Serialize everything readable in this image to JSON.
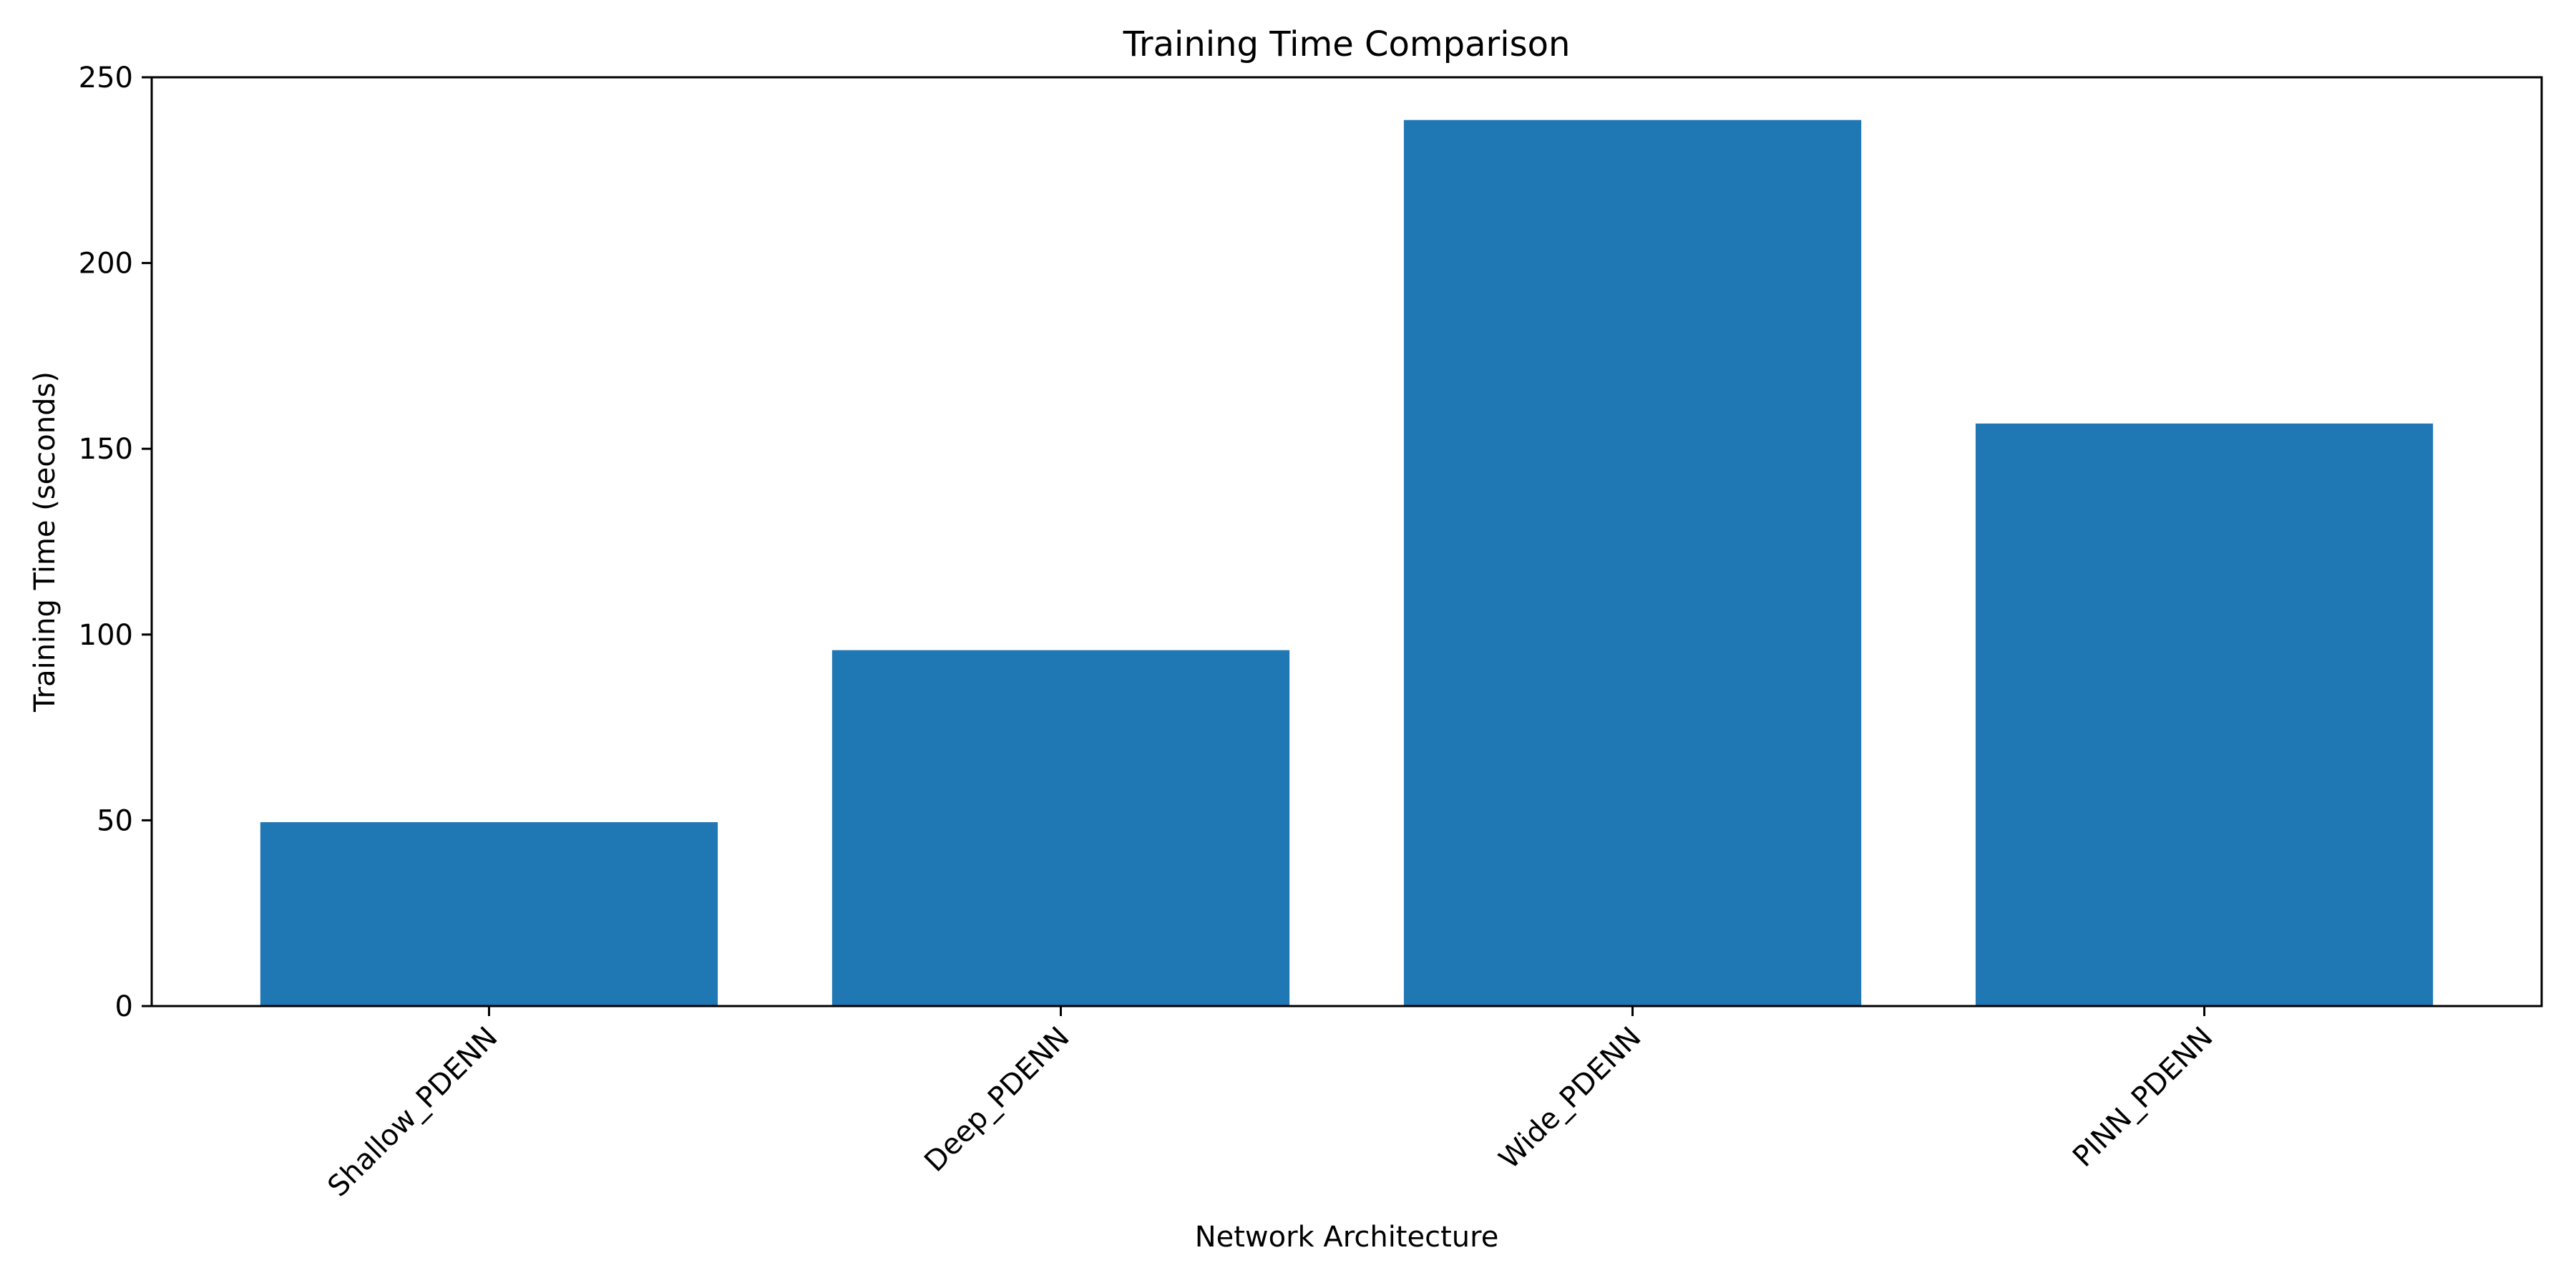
{
  "chart_data": {
    "type": "bar",
    "title": "Training Time Comparison",
    "xlabel": "Network Architecture",
    "ylabel": "Training Time (seconds)",
    "categories": [
      "Shallow_PDENN",
      "Deep_PDENN",
      "Wide_PDENN",
      "PINN_PDENN"
    ],
    "values": [
      49.5,
      95.8,
      238.5,
      156.8
    ],
    "ylim": [
      0,
      250
    ],
    "yticks": [
      0,
      50,
      100,
      150,
      200,
      250
    ],
    "grid": false,
    "legend": "none",
    "bar_color": "#1f77b4",
    "xtick_rotation_deg": 45
  }
}
